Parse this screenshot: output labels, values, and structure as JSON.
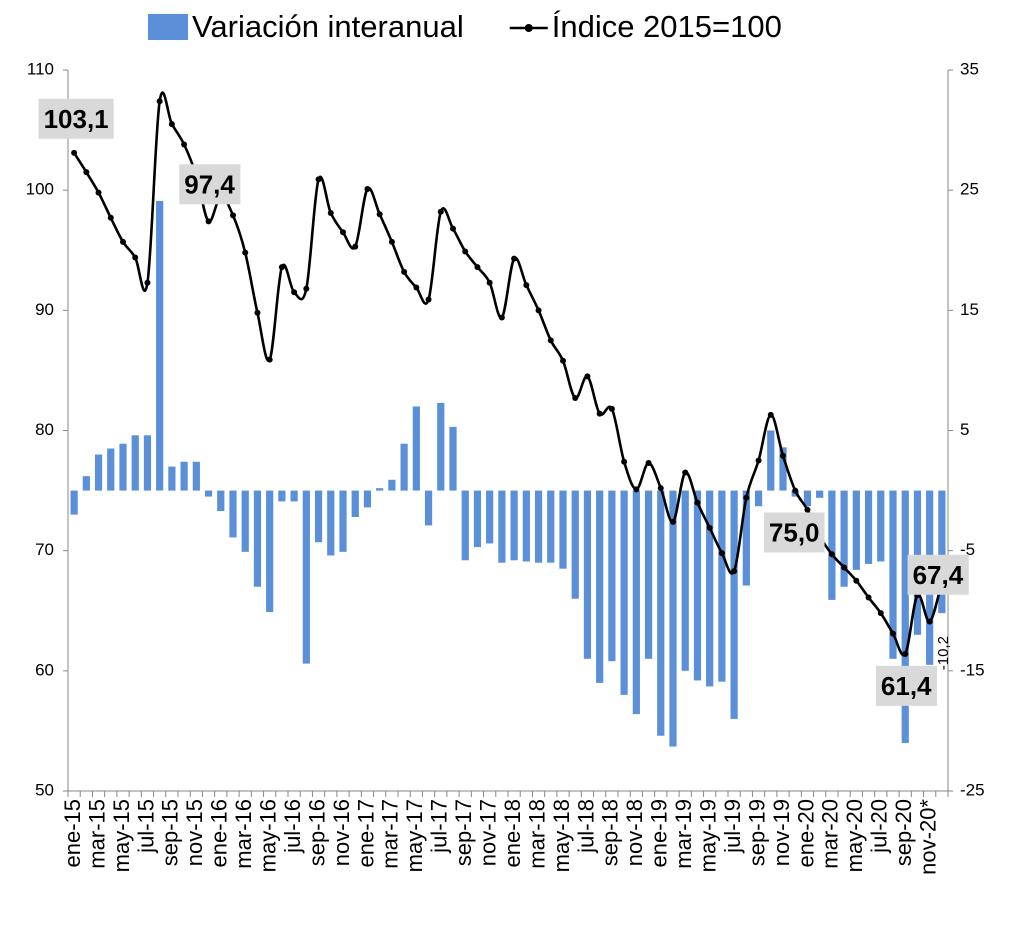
{
  "chart_data": {
    "type": "bar_line",
    "categories": [
      "ene-15",
      null,
      "mar-15",
      null,
      "may-15",
      null,
      "jul-15",
      null,
      "sep-15",
      null,
      "nov-15",
      null,
      "ene-16",
      null,
      "mar-16",
      null,
      "may-16",
      null,
      "jul-16",
      null,
      "sep-16",
      null,
      "nov-16",
      null,
      "ene-17",
      null,
      "mar-17",
      null,
      "may-17",
      null,
      "jul-17",
      null,
      "sep-17",
      null,
      "nov-17",
      null,
      "ene-18",
      null,
      "mar-18",
      null,
      "may-18",
      null,
      "jul-18",
      null,
      "sep-18",
      null,
      "nov-18",
      null,
      "ene-19",
      null,
      "mar-19",
      null,
      "may-19",
      null,
      "jul-19",
      null,
      "sep-19",
      null,
      "nov-19",
      null,
      "ene-20",
      null,
      "mar-20",
      null,
      "may-20",
      null,
      "jul-20",
      null,
      "sep-20",
      null,
      "nov-20*",
      null
    ],
    "series": [
      {
        "name": "Variación interanual",
        "type": "bar",
        "axis": "y2",
        "color": "#5b8fd8",
        "values": [
          -2.0,
          1.2,
          3.0,
          3.5,
          3.9,
          4.6,
          4.6,
          24.1,
          2.0,
          2.4,
          2.4,
          -0.5,
          -1.7,
          -3.9,
          -5.1,
          -8.0,
          -10.1,
          -0.9,
          -0.9,
          -14.4,
          -4.3,
          -5.4,
          -5.1,
          -2.2,
          -1.4,
          0.2,
          0.9,
          3.9,
          7.0,
          -2.9,
          7.3,
          5.3,
          -5.8,
          -4.7,
          -4.4,
          -6.0,
          -5.8,
          -5.9,
          -6.0,
          -6.0,
          -6.5,
          -9.0,
          -14.0,
          -16.0,
          -14.2,
          -17.0,
          -18.6,
          -14.0,
          -20.4,
          -21.3,
          -15.0,
          -15.8,
          -16.3,
          -15.9,
          -19.0,
          -7.9,
          -1.3,
          5.0,
          3.6,
          -0.5,
          -1.3,
          -0.6,
          -9.1,
          -8.0,
          -6.6,
          -6.1,
          -5.9,
          -14.0,
          -21.0,
          -12.0,
          -14.5,
          -10.2
        ],
        "value_labels": [
          null,
          null,
          null,
          null,
          null,
          null,
          null,
          null,
          null,
          null,
          null,
          null,
          null,
          null,
          null,
          null,
          null,
          null,
          null,
          null,
          null,
          null,
          null,
          null,
          null,
          null,
          null,
          null,
          null,
          null,
          null,
          null,
          null,
          null,
          null,
          null,
          null,
          null,
          null,
          null,
          null,
          null,
          null,
          null,
          null,
          null,
          null,
          null,
          null,
          null,
          null,
          null,
          null,
          null,
          null,
          null,
          null,
          null,
          null,
          null,
          null,
          null,
          null,
          null,
          null,
          null,
          null,
          null,
          null,
          null,
          null,
          "-10,2"
        ]
      },
      {
        "name": "Índice 2015=100",
        "type": "line",
        "color": "#000000",
        "values": [
          103.1,
          101.5,
          99.8,
          97.7,
          95.7,
          94.4,
          92.3,
          107.4,
          105.5,
          103.8,
          101.2,
          97.4,
          99.5,
          97.9,
          94.8,
          89.8,
          85.9,
          93.6,
          91.5,
          91.8,
          100.9,
          98.1,
          96.5,
          95.3,
          100.1,
          98.0,
          95.7,
          93.2,
          91.9,
          90.9,
          98.2,
          96.8,
          94.9,
          93.6,
          92.3,
          89.4,
          94.3,
          92.1,
          90.0,
          87.5,
          85.8,
          82.7,
          84.5,
          81.4,
          81.8,
          77.4,
          75.1,
          77.3,
          75.2,
          72.4,
          76.5,
          74.0,
          71.9,
          69.8,
          68.3,
          74.4,
          77.5,
          81.3,
          77.9,
          75.0,
          73.4,
          71.2,
          69.7,
          68.6,
          67.5,
          66.1,
          64.8,
          63.1,
          61.4,
          66.3,
          64.1,
          67.4
        ],
        "value_labels": [
          "103,1",
          null,
          null,
          null,
          null,
          null,
          null,
          null,
          null,
          null,
          null,
          "97,4",
          null,
          null,
          null,
          null,
          null,
          null,
          null,
          null,
          null,
          null,
          null,
          null,
          null,
          null,
          null,
          null,
          null,
          null,
          null,
          null,
          null,
          null,
          null,
          null,
          null,
          null,
          null,
          null,
          null,
          null,
          null,
          null,
          null,
          null,
          null,
          null,
          null,
          null,
          null,
          null,
          null,
          null,
          null,
          null,
          null,
          null,
          null,
          "75,0",
          null,
          null,
          null,
          null,
          null,
          null,
          null,
          null,
          "61,4",
          null,
          null,
          "67,4"
        ]
      }
    ],
    "ylim": [
      50,
      110
    ],
    "yticks": [
      50,
      60,
      70,
      80,
      90,
      100,
      110
    ],
    "y2lim": [
      -25,
      35
    ],
    "y2ticks": [
      -25,
      -15,
      -5,
      5,
      15,
      25,
      35
    ],
    "legend": "top"
  }
}
